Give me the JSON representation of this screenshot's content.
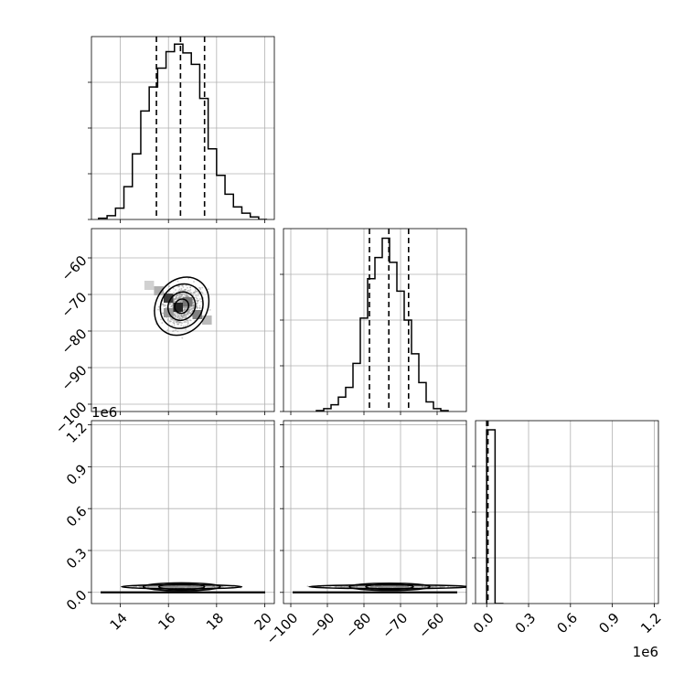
{
  "chart_data": {
    "type": "corner",
    "grid": true,
    "colors": {
      "line": "#000000",
      "grid": "#b0b0b0",
      "scatter": "#8a8a8a"
    },
    "params": [
      {
        "name": "",
        "range": [
          12.8,
          20.4
        ],
        "ticks": [
          14,
          16,
          18,
          20
        ],
        "tick_labels": [
          "14",
          "16",
          "18",
          "20"
        ],
        "quantiles": [
          15.5,
          16.5,
          17.5
        ],
        "hist_edges": [
          13.1,
          13.45,
          13.8,
          14.15,
          14.5,
          14.85,
          15.2,
          15.55,
          15.9,
          16.25,
          16.6,
          16.95,
          17.3,
          17.65,
          18.0,
          18.35,
          18.7,
          19.05,
          19.4,
          19.75,
          20.1
        ],
        "hist_counts": [
          1,
          3,
          9,
          26,
          52,
          86,
          105,
          120,
          133,
          139,
          132,
          123,
          96,
          56,
          35,
          20,
          10,
          5,
          2,
          0
        ]
      },
      {
        "name": "",
        "range": [
          -102,
          -52
        ],
        "ticks": [
          -100,
          -90,
          -80,
          -70,
          -60
        ],
        "tick_labels": [
          "−100",
          "−90",
          "−80",
          "−70",
          "−60"
        ],
        "quantiles": [
          -78.5,
          -73.2,
          -67.8
        ],
        "hist_edges": [
          -93,
          -91,
          -89,
          -87,
          -85,
          -83,
          -81,
          -79,
          -77,
          -75,
          -73,
          -71,
          -69,
          -67,
          -65,
          -63,
          -61,
          -59,
          -57
        ],
        "hist_counts": [
          1,
          3,
          7,
          15,
          25,
          50,
          97,
          138,
          160,
          180,
          155,
          125,
          95,
          60,
          30,
          10,
          3,
          1
        ]
      },
      {
        "name": "",
        "range": [
          -80000,
          1230000
        ],
        "ticks": [
          0,
          300000,
          600000,
          900000,
          1200000
        ],
        "tick_labels": [
          "0.0",
          "0.3",
          "0.6",
          "0.9",
          "1.2"
        ],
        "offset_label": "1e6",
        "quantiles": [
          0,
          4000,
          9000
        ],
        "hist_edges": [
          0,
          60000,
          120000
        ],
        "hist_counts": [
          190,
          0
        ]
      }
    ],
    "diag_ylim": [
      [
        0,
        145
      ],
      [
        0,
        190
      ],
      [
        0,
        200
      ]
    ],
    "contour_ellipses": [
      {
        "pair": [
          0,
          1
        ],
        "center": [
          16.55,
          -73.2
        ],
        "levels": [
          {
            "rx": 1.05,
            "ry": 8.4
          },
          {
            "rx": 0.85,
            "ry": 6.3
          },
          {
            "rx": 0.55,
            "ry": 4.0
          },
          {
            "rx": 0.28,
            "ry": 2.0
          }
        ]
      },
      {
        "pair": [
          0,
          2
        ],
        "center": [
          16.55,
          40000
        ],
        "levels": [
          {
            "rx": 2.5,
            "ry": 14000
          },
          {
            "rx": 1.6,
            "ry": 28000
          },
          {
            "rx": 0.95,
            "ry": 20000
          }
        ]
      },
      {
        "pair": [
          1,
          2
        ],
        "center": [
          -73.0,
          40000
        ],
        "levels": [
          {
            "rx": 22,
            "ry": 12000
          },
          {
            "rx": 11,
            "ry": 26000
          },
          {
            "rx": 6.5,
            "ry": 18000
          }
        ]
      }
    ],
    "density_cells": [
      {
        "pair": [
          0,
          1
        ],
        "cells": [
          {
            "x": 16.0,
            "y": -71.0,
            "v": 0.85
          },
          {
            "x": 16.4,
            "y": -73.5,
            "v": 0.95
          },
          {
            "x": 16.8,
            "y": -72.0,
            "v": 0.6
          },
          {
            "x": 17.2,
            "y": -75.5,
            "v": 0.55
          },
          {
            "x": 15.6,
            "y": -69.0,
            "v": 0.35
          },
          {
            "x": 16.0,
            "y": -75.0,
            "v": 0.45
          },
          {
            "x": 17.6,
            "y": -77.0,
            "v": 0.3
          },
          {
            "x": 15.2,
            "y": -67.5,
            "v": 0.2
          }
        ]
      },
      {
        "pair": [
          0,
          2
        ],
        "cells": [
          {
            "x": 15.4,
            "y": 40000,
            "v": 0.3
          },
          {
            "x": 16.6,
            "y": 45000,
            "v": 0.45
          },
          {
            "x": 17.6,
            "y": 40000,
            "v": 0.3
          }
        ]
      },
      {
        "pair": [
          1,
          2
        ],
        "cells": [
          {
            "x": -80,
            "y": 40000,
            "v": 0.25
          },
          {
            "x": -73,
            "y": 45000,
            "v": 0.45
          },
          {
            "x": -66,
            "y": 40000,
            "v": 0.25
          }
        ]
      }
    ]
  }
}
